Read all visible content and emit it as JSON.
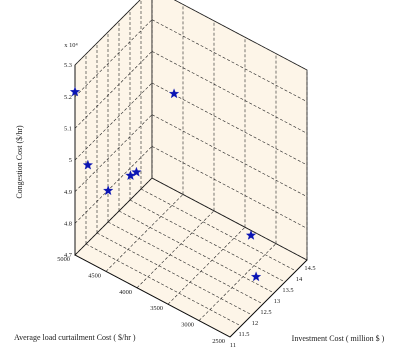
{
  "chart_data": {
    "type": "scatter",
    "projection": "3d",
    "title": "",
    "xlabel": "Investment Cost ( million $ )",
    "ylabel": "Average load curtailment Cost ( $/hr )",
    "zlabel": "Congestion Cost ($/hr)",
    "z_exponent_label": "x 10⁴",
    "xlim": [
      11,
      14.5
    ],
    "ylim": [
      2500,
      5000
    ],
    "zlim": [
      4.7,
      5.3
    ],
    "x_ticks": [
      "11",
      "11.5",
      "12",
      "12.5",
      "13",
      "13.5",
      "14",
      "14.5"
    ],
    "y_ticks": [
      "2500",
      "3000",
      "3500",
      "4000",
      "4500",
      "5000"
    ],
    "z_ticks": [
      "4.7",
      "4.8",
      "4.9",
      "5",
      "5.1",
      "5.2",
      "5.3"
    ],
    "grid": true,
    "pane_color": "#fdf5e8",
    "grid_color": "#222222",
    "marker": "star",
    "marker_color": "#0a14b4",
    "series": [
      {
        "points": [
          {
            "x": 11.0,
            "y": 5000,
            "z": 5.215
          },
          {
            "x": 11.05,
            "y": 4810,
            "z": 5.0
          },
          {
            "x": 11.55,
            "y": 4660,
            "z": 4.9
          },
          {
            "x": 11.55,
            "y": 4300,
            "z": 4.985
          },
          {
            "x": 11.65,
            "y": 4240,
            "z": 4.995
          },
          {
            "x": 14.15,
            "y": 4520,
            "z": 5.04
          },
          {
            "x": 14.35,
            "y": 3350,
            "z": 4.7
          },
          {
            "x": 13.2,
            "y": 2860,
            "z": 4.7
          }
        ]
      }
    ]
  }
}
